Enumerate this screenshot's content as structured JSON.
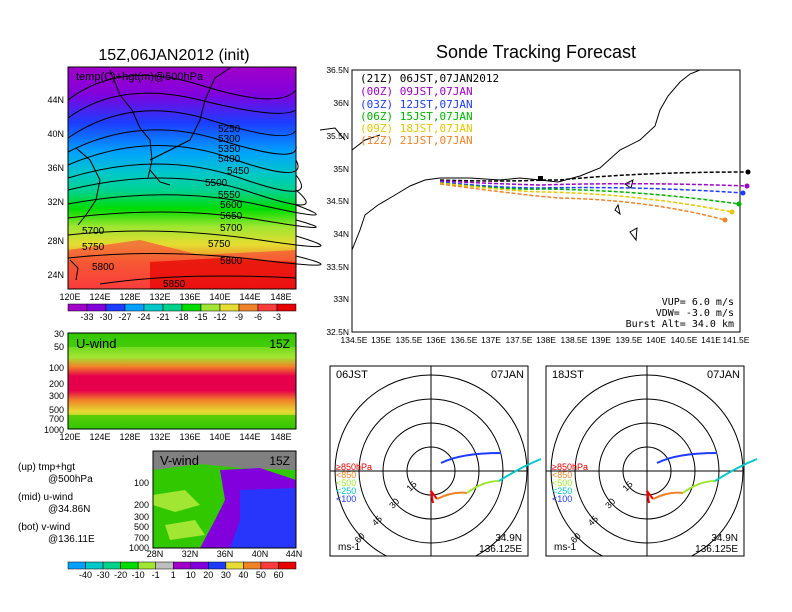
{
  "left_top": {
    "title": "15Z,06JAN2012 (init)",
    "field_label": "temp(C)+hgt(m)@500hPa",
    "lat_ticks": [
      "44N",
      "40N",
      "36N",
      "32N",
      "28N",
      "24N"
    ],
    "lon_ticks": [
      "120E",
      "124E",
      "128E",
      "132E",
      "136E",
      "140E",
      "144E",
      "148E"
    ],
    "contour_labels": [
      "5250",
      "5300",
      "5350",
      "5400",
      "5450",
      "5500",
      "5550",
      "5600",
      "5650",
      "5700",
      "5700",
      "5750",
      "5750",
      "5800",
      "5800",
      "5850"
    ],
    "colorbar_labels": [
      "-33",
      "-30",
      "-27",
      "-24",
      "-21",
      "-18",
      "-15",
      "-12",
      "-9",
      "-6",
      "-3"
    ],
    "colorbar_colors": [
      "#a000c8",
      "#8200dc",
      "#1e3cff",
      "#00a0ff",
      "#00c8c8",
      "#00d28c",
      "#00dc00",
      "#a0e632",
      "#e6dc32",
      "#f08228",
      "#fa3c3c",
      "#e60000"
    ]
  },
  "left_mid": {
    "label": "U-wind",
    "time": "15Z",
    "p_ticks": [
      "30",
      "50",
      "100",
      "200",
      "300",
      "500",
      "700",
      "1000"
    ],
    "lon_ticks": [
      "120E",
      "124E",
      "128E",
      "132E",
      "136E",
      "140E",
      "144E",
      "148E"
    ]
  },
  "left_bot": {
    "label": "V-wind",
    "time": "15Z",
    "p_ticks": [
      "100",
      "200",
      "300",
      "500",
      "700",
      "1000"
    ],
    "lat_ticks": [
      "28N",
      "32N",
      "36N",
      "40N",
      "44N"
    ],
    "colorbar_labels": [
      "-40",
      "-30",
      "-20",
      "-10",
      "-1",
      "1",
      "10",
      "20",
      "30",
      "40",
      "50",
      "60"
    ],
    "colorbar_colors": [
      "#00a0ff",
      "#00c8c8",
      "#00d28c",
      "#00dc00",
      "#a0e632",
      "#bebebe",
      "#a000c8",
      "#8200dc",
      "#1e3cff",
      "#e6dc32",
      "#f08228",
      "#fa3c3c",
      "#e60000"
    ]
  },
  "legend_text": {
    "up_1": "(up)  tmp+hgt",
    "up_2": "@500hPa",
    "mid_1": "(mid)  u-wind",
    "mid_2": "@34.86N",
    "bot_1": "(bot)  v-wind",
    "bot_2": "@136.11E"
  },
  "sonde": {
    "title": "Sonde Tracking Forecast",
    "lat_ticks": [
      "36.5N",
      "36N",
      "35.5N",
      "35N",
      "34.5N",
      "34N",
      "33.5N",
      "33N",
      "32.5N"
    ],
    "lon_ticks": [
      "134.5E",
      "135E",
      "135.5E",
      "136E",
      "136.5E",
      "137E",
      "137.5E",
      "138E",
      "138.5E",
      "139E",
      "139.5E",
      "140E",
      "140.5E",
      "141E",
      "141.5E"
    ],
    "launches": [
      {
        "label": "(21Z)  06JST,07JAN2012",
        "color": "#000000"
      },
      {
        "label": "(00Z)  09JST,07JAN",
        "color": "#a000c8"
      },
      {
        "label": "(03Z)  12JST,07JAN",
        "color": "#1e3cff"
      },
      {
        "label": "(06Z)  15JST,07JAN",
        "color": "#00b400"
      },
      {
        "label": "(09Z)  18JST,07JAN",
        "color": "#e6c800"
      },
      {
        "label": "(12Z)  21JST,07JAN",
        "color": "#f08228"
      }
    ],
    "vup": "VUP=  6.0  m/s",
    "vdw": "VDW=  -3.0  m/s",
    "burst": "Burst Alt=  34.0  km"
  },
  "hodo_left": {
    "time": "06JST",
    "date": "07JAN",
    "legend": [
      "≥850hPa",
      "<850",
      "<500",
      "<250",
      "<100"
    ],
    "legend_colors": [
      "#e60000",
      "#f08228",
      "#a0e632",
      "#00c8c8",
      "#1e3cff"
    ],
    "ring_labels": [
      "15",
      "30",
      "45",
      "60"
    ],
    "unit": "ms-1",
    "lat": "34.9N",
    "lon": "136.125E"
  },
  "hodo_right": {
    "time": "18JST",
    "date": "07JAN",
    "legend": [
      "≥850hPa",
      "<850",
      "<500",
      "<250",
      "<100"
    ],
    "legend_colors": [
      "#e60000",
      "#f08228",
      "#a0e632",
      "#00c8c8",
      "#1e3cff"
    ],
    "ring_labels": [
      "15",
      "30",
      "45",
      "60"
    ],
    "unit": "ms-1",
    "lat": "34.9N",
    "lon": "136.125E"
  }
}
